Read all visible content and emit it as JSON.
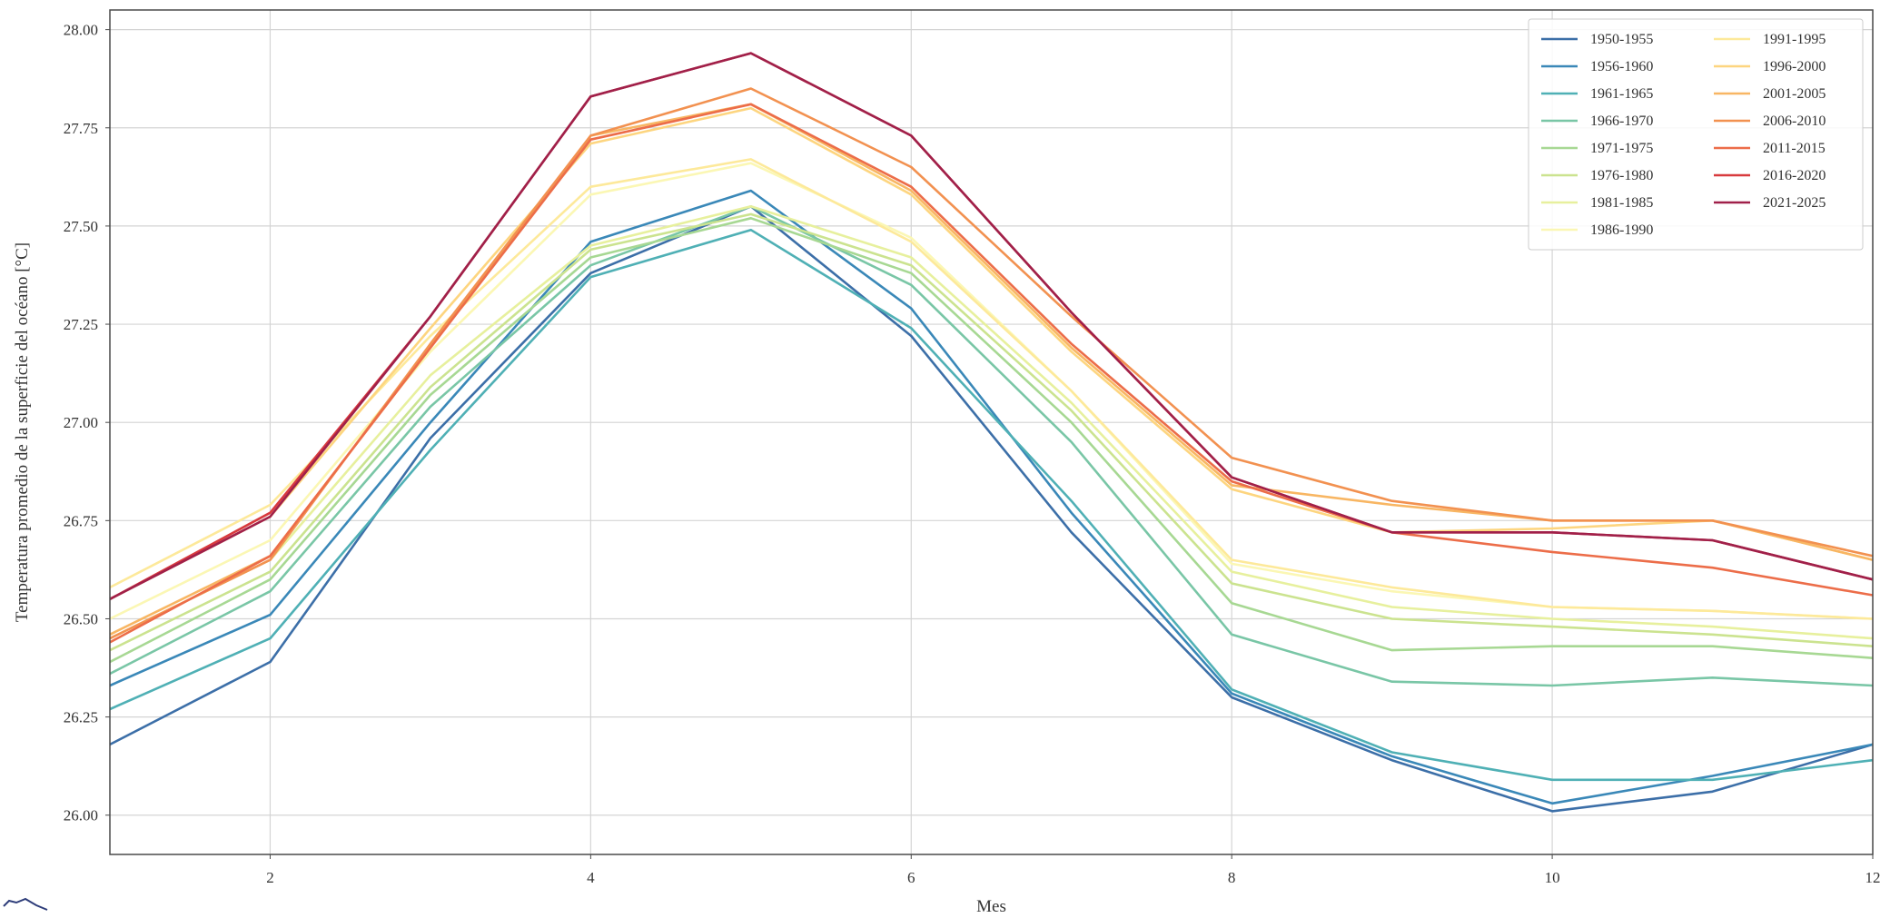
{
  "chart_data": {
    "type": "line",
    "xlabel": "Mes",
    "ylabel": "Temperatura promedio de la superficie del océano [°C]",
    "xlim": [
      1,
      12
    ],
    "ylim": [
      25.9,
      28.05
    ],
    "x": [
      1,
      2,
      3,
      4,
      5,
      6,
      7,
      8,
      9,
      10,
      11,
      12
    ],
    "x_ticks": [
      2,
      4,
      6,
      8,
      10,
      12
    ],
    "x_tick_labels": [
      "2",
      "4",
      "6",
      "8",
      "10",
      "12"
    ],
    "y_ticks": [
      26.0,
      26.25,
      26.5,
      26.75,
      27.0,
      27.25,
      27.5,
      27.75,
      28.0
    ],
    "y_tick_labels": [
      "26.00",
      "26.25",
      "26.50",
      "26.75",
      "27.00",
      "27.25",
      "27.50",
      "27.75",
      "28.00"
    ],
    "grid": true,
    "legend_position": "top-right",
    "legend_columns": 2,
    "series": [
      {
        "name": "1950-1955",
        "color": "#3c6fa8",
        "values": [
          26.18,
          26.39,
          26.96,
          27.38,
          27.55,
          27.22,
          26.72,
          26.3,
          26.14,
          26.01,
          26.06,
          26.18
        ]
      },
      {
        "name": "1956-1960",
        "color": "#3a88b8",
        "values": [
          26.33,
          26.51,
          27.0,
          27.46,
          27.59,
          27.29,
          26.77,
          26.31,
          26.15,
          26.03,
          26.1,
          26.18
        ]
      },
      {
        "name": "1961-1965",
        "color": "#4fb0b5",
        "values": [
          26.27,
          26.45,
          26.93,
          27.37,
          27.49,
          27.24,
          26.8,
          26.32,
          26.16,
          26.09,
          26.09,
          26.14
        ]
      },
      {
        "name": "1966-1970",
        "color": "#79c6a6",
        "values": [
          26.36,
          26.57,
          27.04,
          27.4,
          27.55,
          27.35,
          26.95,
          26.46,
          26.34,
          26.33,
          26.35,
          26.33
        ]
      },
      {
        "name": "1971-1975",
        "color": "#a7d893",
        "values": [
          26.39,
          26.6,
          27.07,
          27.42,
          27.52,
          27.38,
          27.0,
          26.54,
          26.42,
          26.43,
          26.43,
          26.4
        ]
      },
      {
        "name": "1976-1980",
        "color": "#cbe38f",
        "values": [
          26.42,
          26.62,
          27.09,
          27.44,
          27.53,
          27.4,
          27.03,
          26.59,
          26.5,
          26.48,
          26.46,
          26.43
        ]
      },
      {
        "name": "1981-1985",
        "color": "#e7f09d",
        "values": [
          26.45,
          26.65,
          27.12,
          27.45,
          27.55,
          27.42,
          27.05,
          26.62,
          26.53,
          26.5,
          26.48,
          26.45
        ]
      },
      {
        "name": "1986-1990",
        "color": "#fbf7b4",
        "values": [
          26.5,
          26.7,
          27.18,
          27.58,
          27.66,
          27.47,
          27.08,
          26.64,
          26.57,
          26.53,
          26.52,
          26.5
        ]
      },
      {
        "name": "1991-1995",
        "color": "#fde99a",
        "values": [
          26.58,
          26.79,
          27.22,
          27.6,
          27.67,
          27.46,
          27.08,
          26.65,
          26.58,
          26.53,
          26.52,
          26.5
        ]
      },
      {
        "name": "1996-2000",
        "color": "#fdd57f",
        "values": [
          26.55,
          26.76,
          27.24,
          27.71,
          27.8,
          27.58,
          27.18,
          26.83,
          26.72,
          26.73,
          26.75,
          26.65
        ]
      },
      {
        "name": "2001-2005",
        "color": "#f8b663",
        "values": [
          26.46,
          26.66,
          27.19,
          27.73,
          27.81,
          27.59,
          27.19,
          26.84,
          26.79,
          26.75,
          26.75,
          26.65
        ]
      },
      {
        "name": "2006-2010",
        "color": "#f29150",
        "values": [
          26.45,
          26.65,
          27.2,
          27.73,
          27.85,
          27.65,
          27.27,
          26.91,
          26.8,
          26.75,
          26.75,
          26.66
        ]
      },
      {
        "name": "2011-2015",
        "color": "#ec6d49",
        "values": [
          26.44,
          26.66,
          27.19,
          27.72,
          27.81,
          27.6,
          27.2,
          26.85,
          26.72,
          26.67,
          26.63,
          26.56
        ]
      },
      {
        "name": "2016-2020",
        "color": "#d83a3e",
        "values": [
          26.55,
          26.77,
          27.27,
          27.83,
          27.94,
          27.73,
          27.28,
          26.86,
          26.72,
          26.72,
          26.7,
          26.6
        ]
      },
      {
        "name": "2021-2025",
        "color": "#a0204a",
        "values": [
          26.55,
          26.76,
          27.27,
          27.83,
          27.94,
          27.73,
          27.28,
          26.86,
          26.72,
          26.72,
          26.7,
          26.6
        ]
      }
    ]
  }
}
